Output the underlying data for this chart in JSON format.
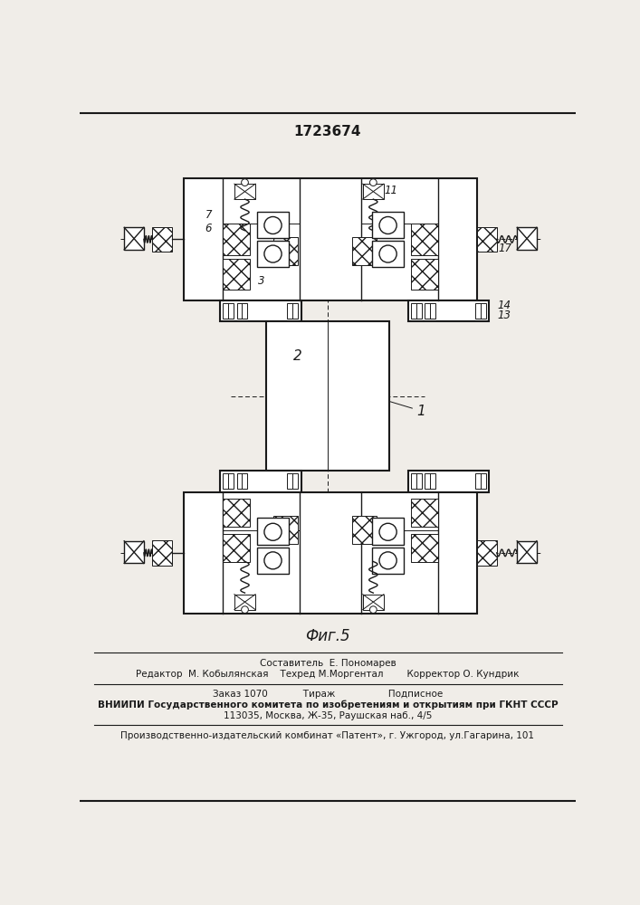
{
  "patent_number": "1723674",
  "fig_label": "Фиг.5",
  "bg_color": "#f0ede8",
  "line_color": "#1a1a1a",
  "footer_lines": [
    "Составитель  Е. Пономарев",
    "Редактор  М. Кобылянская    Техред М.Моргентал        Корректор О. Кундрик",
    "Заказ 1070            Тираж                  Подписное",
    "ВНИИПИ Государственного комитета по изобретениям и открытиям при ГКНТ СССР",
    "113035, Москва, Ж-35, Раушская наб., 4/5",
    "Производственно-издательский комбинат «Патент», г. Ужгород, ул.Гагарина, 101"
  ]
}
